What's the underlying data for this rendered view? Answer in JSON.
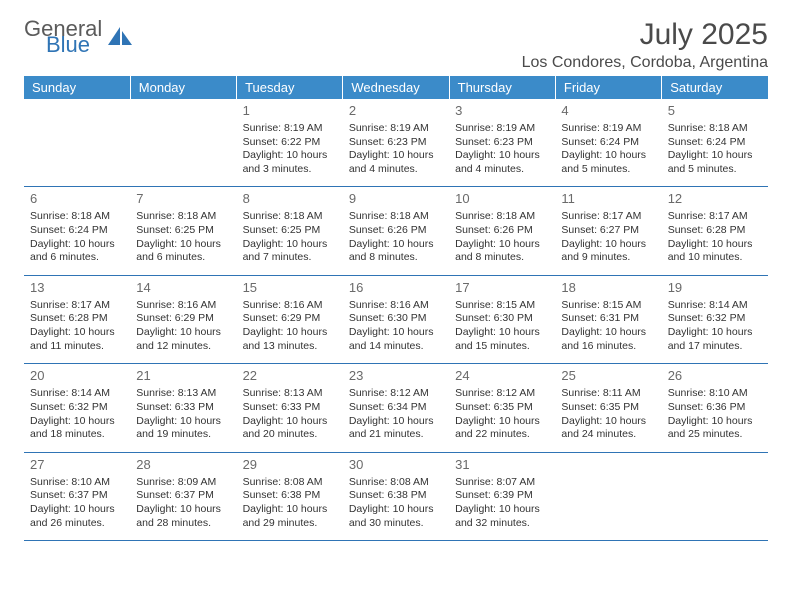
{
  "logo": {
    "general": "General",
    "blue": "Blue"
  },
  "header": {
    "month": "July 2025",
    "location": "Los Condores, Cordoba, Argentina"
  },
  "colors": {
    "header_bg": "#3b8bc9",
    "header_text": "#ffffff",
    "rule": "#2f74b5",
    "text": "#333333",
    "daynum": "#6a6a6a",
    "title": "#4a4a4a",
    "logo_gray": "#5b5b5b",
    "logo_blue": "#2f74b5"
  },
  "weekdays": [
    "Sunday",
    "Monday",
    "Tuesday",
    "Wednesday",
    "Thursday",
    "Friday",
    "Saturday"
  ],
  "weeks": [
    [
      null,
      null,
      {
        "n": "1",
        "sunrise": "8:19 AM",
        "sunset": "6:22 PM",
        "daylight": "10 hours and 3 minutes."
      },
      {
        "n": "2",
        "sunrise": "8:19 AM",
        "sunset": "6:23 PM",
        "daylight": "10 hours and 4 minutes."
      },
      {
        "n": "3",
        "sunrise": "8:19 AM",
        "sunset": "6:23 PM",
        "daylight": "10 hours and 4 minutes."
      },
      {
        "n": "4",
        "sunrise": "8:19 AM",
        "sunset": "6:24 PM",
        "daylight": "10 hours and 5 minutes."
      },
      {
        "n": "5",
        "sunrise": "8:18 AM",
        "sunset": "6:24 PM",
        "daylight": "10 hours and 5 minutes."
      }
    ],
    [
      {
        "n": "6",
        "sunrise": "8:18 AM",
        "sunset": "6:24 PM",
        "daylight": "10 hours and 6 minutes."
      },
      {
        "n": "7",
        "sunrise": "8:18 AM",
        "sunset": "6:25 PM",
        "daylight": "10 hours and 6 minutes."
      },
      {
        "n": "8",
        "sunrise": "8:18 AM",
        "sunset": "6:25 PM",
        "daylight": "10 hours and 7 minutes."
      },
      {
        "n": "9",
        "sunrise": "8:18 AM",
        "sunset": "6:26 PM",
        "daylight": "10 hours and 8 minutes."
      },
      {
        "n": "10",
        "sunrise": "8:18 AM",
        "sunset": "6:26 PM",
        "daylight": "10 hours and 8 minutes."
      },
      {
        "n": "11",
        "sunrise": "8:17 AM",
        "sunset": "6:27 PM",
        "daylight": "10 hours and 9 minutes."
      },
      {
        "n": "12",
        "sunrise": "8:17 AM",
        "sunset": "6:28 PM",
        "daylight": "10 hours and 10 minutes."
      }
    ],
    [
      {
        "n": "13",
        "sunrise": "8:17 AM",
        "sunset": "6:28 PM",
        "daylight": "10 hours and 11 minutes."
      },
      {
        "n": "14",
        "sunrise": "8:16 AM",
        "sunset": "6:29 PM",
        "daylight": "10 hours and 12 minutes."
      },
      {
        "n": "15",
        "sunrise": "8:16 AM",
        "sunset": "6:29 PM",
        "daylight": "10 hours and 13 minutes."
      },
      {
        "n": "16",
        "sunrise": "8:16 AM",
        "sunset": "6:30 PM",
        "daylight": "10 hours and 14 minutes."
      },
      {
        "n": "17",
        "sunrise": "8:15 AM",
        "sunset": "6:30 PM",
        "daylight": "10 hours and 15 minutes."
      },
      {
        "n": "18",
        "sunrise": "8:15 AM",
        "sunset": "6:31 PM",
        "daylight": "10 hours and 16 minutes."
      },
      {
        "n": "19",
        "sunrise": "8:14 AM",
        "sunset": "6:32 PM",
        "daylight": "10 hours and 17 minutes."
      }
    ],
    [
      {
        "n": "20",
        "sunrise": "8:14 AM",
        "sunset": "6:32 PM",
        "daylight": "10 hours and 18 minutes."
      },
      {
        "n": "21",
        "sunrise": "8:13 AM",
        "sunset": "6:33 PM",
        "daylight": "10 hours and 19 minutes."
      },
      {
        "n": "22",
        "sunrise": "8:13 AM",
        "sunset": "6:33 PM",
        "daylight": "10 hours and 20 minutes."
      },
      {
        "n": "23",
        "sunrise": "8:12 AM",
        "sunset": "6:34 PM",
        "daylight": "10 hours and 21 minutes."
      },
      {
        "n": "24",
        "sunrise": "8:12 AM",
        "sunset": "6:35 PM",
        "daylight": "10 hours and 22 minutes."
      },
      {
        "n": "25",
        "sunrise": "8:11 AM",
        "sunset": "6:35 PM",
        "daylight": "10 hours and 24 minutes."
      },
      {
        "n": "26",
        "sunrise": "8:10 AM",
        "sunset": "6:36 PM",
        "daylight": "10 hours and 25 minutes."
      }
    ],
    [
      {
        "n": "27",
        "sunrise": "8:10 AM",
        "sunset": "6:37 PM",
        "daylight": "10 hours and 26 minutes."
      },
      {
        "n": "28",
        "sunrise": "8:09 AM",
        "sunset": "6:37 PM",
        "daylight": "10 hours and 28 minutes."
      },
      {
        "n": "29",
        "sunrise": "8:08 AM",
        "sunset": "6:38 PM",
        "daylight": "10 hours and 29 minutes."
      },
      {
        "n": "30",
        "sunrise": "8:08 AM",
        "sunset": "6:38 PM",
        "daylight": "10 hours and 30 minutes."
      },
      {
        "n": "31",
        "sunrise": "8:07 AM",
        "sunset": "6:39 PM",
        "daylight": "10 hours and 32 minutes."
      },
      null,
      null
    ]
  ],
  "labels": {
    "sunrise": "Sunrise:",
    "sunset": "Sunset:",
    "daylight": "Daylight:"
  }
}
